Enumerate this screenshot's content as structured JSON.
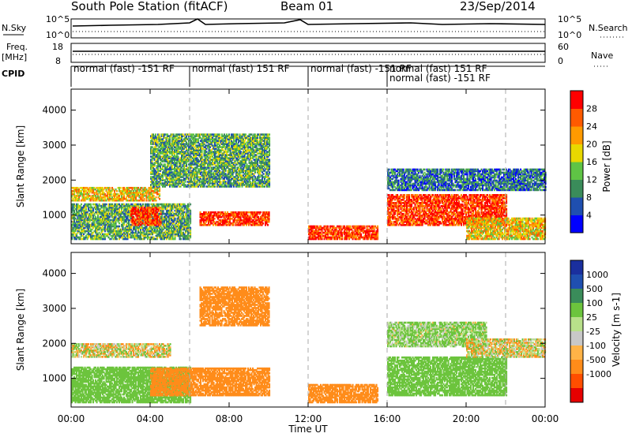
{
  "header": {
    "station": "South Pole Station (fitACF)",
    "beam": "Beam 01",
    "date": "23/Sep/2014"
  },
  "top_panels": {
    "nsky_label": "N.Sky",
    "nsky_ticks": [
      "10^5",
      "10^0"
    ],
    "nsearch_label": "N.Search",
    "nsearch_ticks": [
      "10^5",
      "10^0"
    ],
    "freq_label": "Freq.",
    "freq_unit": "[MHz]",
    "freq_ticks": [
      "18",
      "8"
    ],
    "nave_ticks": [
      "60",
      "0"
    ],
    "nave_label": "Nave",
    "cpid_label": "CPID"
  },
  "cpid_segments": [
    {
      "label": "normal (fast) -151 RF",
      "start_hour": 0,
      "end_hour": 6
    },
    {
      "label": "normal (fast) 151 RF",
      "start_hour": 6,
      "end_hour": 12
    },
    {
      "label": "normal (fast) -151 RF",
      "start_hour": 12,
      "end_hour": 16
    },
    {
      "label": "normal (fast) 151 RF",
      "start_hour": 16,
      "end_hour": 22
    },
    {
      "label": "normal (fast) -151 RF",
      "start_hour": 16,
      "end_hour": 22
    }
  ],
  "colors": {
    "power_scale": [
      "#0000ff",
      "#1f4fb0",
      "#3a8c5a",
      "#5fc445",
      "#e8d800",
      "#ff9a00",
      "#ff5a00",
      "#ff0000"
    ],
    "velocity_scale": [
      "#e60000",
      "#ff4e00",
      "#ff8c1a",
      "#ffb347",
      "#c8c8c8",
      "#b8e08a",
      "#6cc43d",
      "#3a8c5a",
      "#1f4fb0",
      "#1a2f9e"
    ],
    "ground_scatter": "#c8c8c8"
  },
  "chart_data": [
    {
      "type": "heatmap",
      "name_on_chart": "Power",
      "colorbar_label": "Power [dB]",
      "colorbar_ticks": [
        "28",
        "24",
        "20",
        "16",
        "12",
        "8",
        "4"
      ],
      "ylabel": "Slant Range [km]",
      "ytick_labels": [
        "1000",
        "2000",
        "3000",
        "4000"
      ],
      "ylim": [
        180,
        4600
      ],
      "xlim": [
        0,
        24
      ],
      "scatter_bands": [
        {
          "start_hour": 0,
          "end_hour": 4.5,
          "range_low": 1400,
          "range_high": 1800,
          "value": 20
        },
        {
          "start_hour": 0,
          "end_hour": 6,
          "range_low": 300,
          "range_high": 1300,
          "value": 12
        },
        {
          "start_hour": 3,
          "end_hour": 4.5,
          "range_low": 700,
          "range_high": 1200,
          "value": 28
        },
        {
          "start_hour": 6.5,
          "end_hour": 10,
          "range_low": 700,
          "range_high": 1100,
          "value": 28
        },
        {
          "start_hour": 4,
          "end_hour": 10,
          "range_low": 1800,
          "range_high": 3300,
          "value": 12
        },
        {
          "start_hour": 12,
          "end_hour": 15.5,
          "range_low": 300,
          "range_high": 700,
          "value": 28
        },
        {
          "start_hour": 16,
          "end_hour": 22,
          "range_low": 700,
          "range_high": 1600,
          "value": 28
        },
        {
          "start_hour": 16,
          "end_hour": 24,
          "range_low": 1700,
          "range_high": 2300,
          "value": 8
        },
        {
          "start_hour": 20,
          "end_hour": 24,
          "range_low": 300,
          "range_high": 900,
          "value": 20
        }
      ]
    },
    {
      "type": "heatmap",
      "name_on_chart": "Velocity",
      "colorbar_label": "Velocity [m s-1]",
      "colorbar_ticks": [
        "1000",
        "500",
        "100",
        "25",
        "-25",
        "-100",
        "-500",
        "-1000"
      ],
      "ylabel": "Slant Range [km]",
      "ytick_labels": [
        "1000",
        "2000",
        "3000",
        "4000"
      ],
      "ylim": [
        180,
        4600
      ],
      "xlim": [
        0,
        24
      ],
      "xlabel": "Time UT",
      "xtick_labels": [
        "00:00",
        "04:00",
        "08:00",
        "12:00",
        "16:00",
        "20:00",
        "00:00"
      ],
      "scatter_bands": [
        {
          "start_hour": 0,
          "end_hour": 5,
          "range_low": 1600,
          "range_high": 2000,
          "value": 0
        },
        {
          "start_hour": 0,
          "end_hour": 6,
          "range_low": 300,
          "range_high": 1300,
          "value": 300
        },
        {
          "start_hour": 4,
          "end_hour": 10,
          "range_low": 500,
          "range_high": 1300,
          "value": -300
        },
        {
          "start_hour": 6.5,
          "end_hour": 10,
          "range_low": 2500,
          "range_high": 3600,
          "value": -300
        },
        {
          "start_hour": 12,
          "end_hour": 15.5,
          "range_low": 300,
          "range_high": 800,
          "value": -300
        },
        {
          "start_hour": 16,
          "end_hour": 22,
          "range_low": 500,
          "range_high": 1600,
          "value": 300
        },
        {
          "start_hour": 16,
          "end_hour": 21,
          "range_low": 1900,
          "range_high": 2600,
          "value": 150
        },
        {
          "start_hour": 20,
          "end_hour": 24,
          "range_low": 1600,
          "range_high": 2100,
          "value": 0
        }
      ]
    }
  ],
  "time_axis": {
    "start_hour": 0,
    "end_hour": 24,
    "divider_hours": [
      6,
      12,
      16,
      22
    ]
  }
}
